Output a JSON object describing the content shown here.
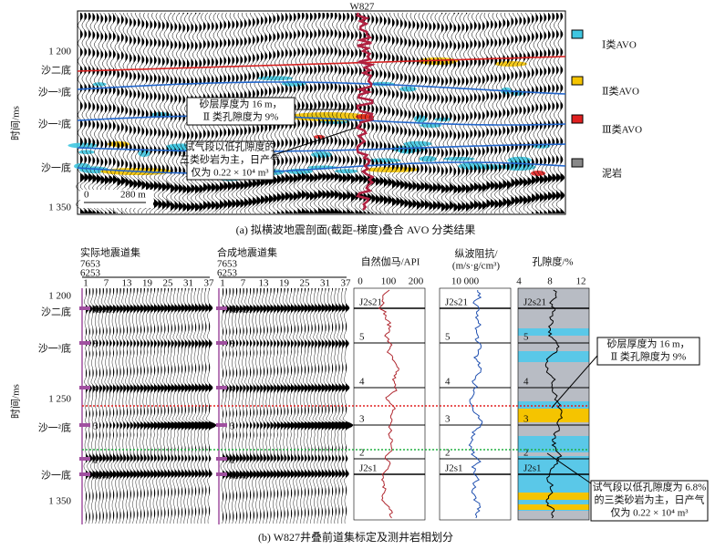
{
  "top": {
    "well": "W827",
    "times": [
      "1 200",
      "1 350"
    ],
    "horizons": [
      "沙二底",
      "沙一³底",
      "沙一²底",
      "沙一底"
    ],
    "axis_title": "时间/ms",
    "note1": [
      "砂层厚度为 16 m，",
      "Ⅱ 类孔隙度为 9%"
    ],
    "note2": [
      "试气段以低孔隙度的",
      "三类砂岩为主，日产气",
      "仅为 0.22 × 10⁴ m³"
    ],
    "scale": [
      "0",
      "280 m"
    ],
    "legend": [
      "Ⅰ类AVO",
      "Ⅱ类AVO",
      "Ⅲ类AVO",
      "泥岩"
    ],
    "caption": "(a) 拟横波地震剖面(截距-梯度)叠合 AVO 分类结果"
  },
  "bottom": {
    "panels": [
      {
        "title": "实际地震道集",
        "range": [
          "7653",
          "6253"
        ],
        "traces": [
          "1",
          "7",
          "13",
          "19",
          "25",
          "31",
          "37"
        ]
      },
      {
        "title": "合成地震道集",
        "range": [
          "7653",
          "6253"
        ],
        "traces": [
          "1",
          "7",
          "13",
          "19",
          "25",
          "31",
          "37"
        ]
      }
    ],
    "gr": {
      "title": "自然伽马/API",
      "ticks": [
        "0",
        "100",
        "200"
      ]
    },
    "imp": {
      "title": [
        "纵波阻抗/",
        "(m/s·g/cm³)"
      ],
      "ticks": [
        "10 000"
      ]
    },
    "por": {
      "title": "孔隙度/%",
      "ticks": [
        "4",
        "8",
        "12"
      ]
    },
    "times": [
      "1 200",
      "1 250",
      "1 350"
    ],
    "horizons": [
      "沙二底",
      "沙一³底",
      "沙一²底",
      "沙一底"
    ],
    "axis_title": "时间/ms",
    "markers": [
      "J2s21",
      "5",
      "4",
      "3",
      "2",
      "J2s1"
    ],
    "note1": [
      "砂层厚度为 16 m，",
      "Ⅱ 类孔隙度为 9%"
    ],
    "note2": [
      "试气段以低孔隙度为 6.8%",
      "的三类砂岩为主，日产气",
      "仅为 0.22 × 10⁴ m³"
    ],
    "caption": "(b) W827井叠前道集标定及测井岩相划分"
  }
}
